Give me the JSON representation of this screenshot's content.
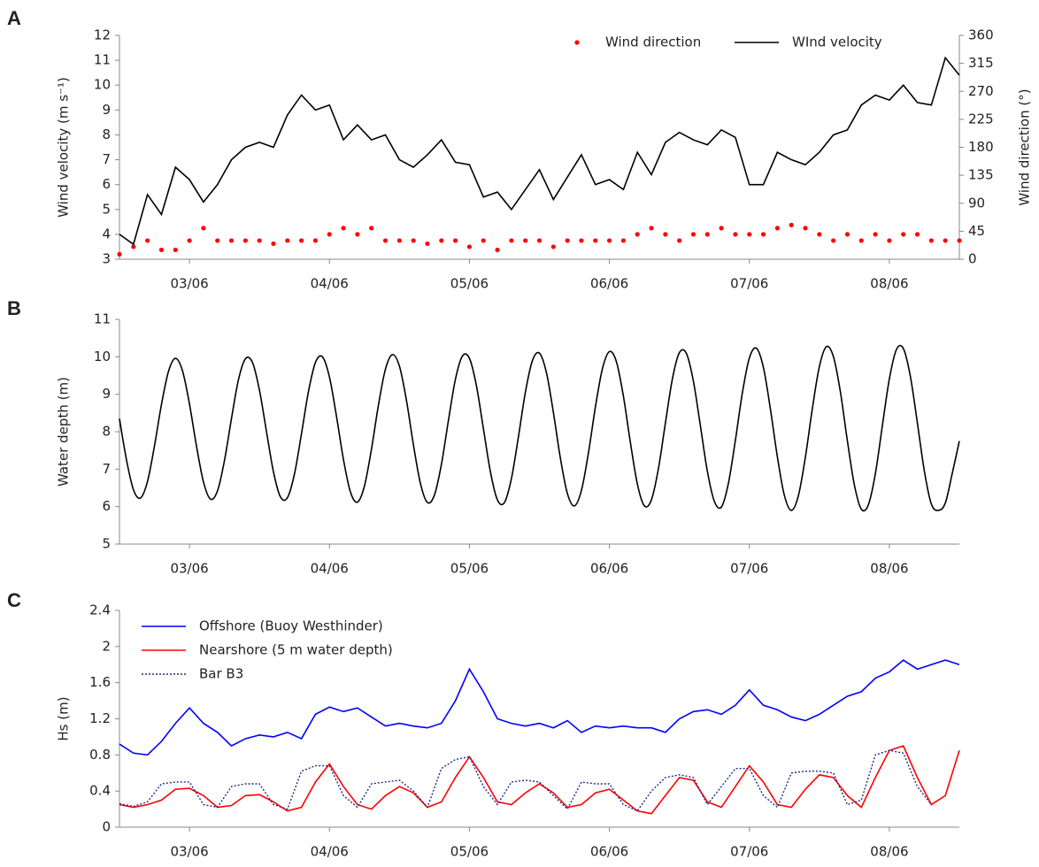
{
  "chart_data": [
    {
      "type": "line",
      "panel": "A",
      "ylabel": "Wind velocity (m s⁻¹)",
      "y2label": "Wind direction (°)",
      "legend": "top-right",
      "xlim": [
        2.5,
        8.5
      ],
      "xticks": [
        {
          "value": 3,
          "label": "03/06"
        },
        {
          "value": 4,
          "label": "04/06"
        },
        {
          "value": 5,
          "label": "05/06"
        },
        {
          "value": 6,
          "label": "06/06"
        },
        {
          "value": 7,
          "label": "07/06"
        },
        {
          "value": 8,
          "label": "08/06"
        }
      ],
      "ylim": [
        3,
        12
      ],
      "yticks": [
        3,
        4,
        5,
        6,
        7,
        8,
        9,
        10,
        11,
        12
      ],
      "y2lim": [
        0,
        360
      ],
      "y2ticks": [
        0,
        45,
        90,
        135,
        180,
        225,
        270,
        315,
        360
      ],
      "x": [
        2.5,
        2.6,
        2.7,
        2.8,
        2.9,
        3.0,
        3.1,
        3.2,
        3.3,
        3.4,
        3.5,
        3.6,
        3.7,
        3.8,
        3.9,
        4.0,
        4.1,
        4.2,
        4.3,
        4.4,
        4.5,
        4.6,
        4.7,
        4.8,
        4.9,
        5.0,
        5.1,
        5.2,
        5.3,
        5.4,
        5.5,
        5.6,
        5.7,
        5.8,
        5.9,
        6.0,
        6.1,
        6.2,
        6.3,
        6.4,
        6.5,
        6.6,
        6.7,
        6.8,
        6.9,
        7.0,
        7.1,
        7.2,
        7.3,
        7.4,
        7.5,
        7.6,
        7.7,
        7.8,
        7.9,
        8.0,
        8.1,
        8.2,
        8.3,
        8.4,
        8.5
      ],
      "series": [
        {
          "name": "Wind direction",
          "color": "#ff0000",
          "mark": "dot",
          "axis": "y2",
          "values": [
            8,
            20,
            30,
            15,
            15,
            30,
            50,
            30,
            30,
            30,
            30,
            25,
            30,
            30,
            30,
            40,
            50,
            40,
            50,
            30,
            30,
            30,
            25,
            30,
            30,
            20,
            30,
            15,
            30,
            30,
            30,
            20,
            30,
            30,
            30,
            30,
            30,
            40,
            50,
            40,
            30,
            40,
            40,
            50,
            40,
            40,
            40,
            50,
            55,
            50,
            40,
            30,
            40,
            30,
            40,
            30,
            40,
            40,
            30,
            30,
            30
          ]
        },
        {
          "name": "WInd velocity",
          "color": "#000000",
          "mark": "line",
          "values": [
            4.0,
            3.6,
            5.6,
            4.8,
            6.7,
            6.2,
            5.3,
            6.0,
            7.0,
            7.5,
            7.7,
            7.5,
            8.8,
            9.6,
            9.0,
            9.2,
            7.8,
            8.4,
            7.8,
            8.0,
            7.0,
            6.7,
            7.2,
            7.8,
            6.9,
            6.8,
            5.5,
            5.7,
            5.0,
            5.8,
            6.6,
            5.4,
            6.3,
            7.2,
            6.0,
            6.2,
            5.8,
            7.3,
            6.4,
            7.7,
            8.1,
            7.8,
            7.6,
            8.2,
            7.9,
            6.0,
            6.0,
            7.3,
            7.0,
            6.8,
            7.3,
            8.0,
            8.2,
            9.2,
            9.6,
            9.4,
            10.0,
            9.3,
            9.2,
            11.1,
            10.4
          ]
        }
      ]
    },
    {
      "type": "line",
      "panel": "B",
      "ylabel": "Water depth (m)",
      "xlim": [
        2.5,
        8.5
      ],
      "xticks": [
        {
          "value": 3,
          "label": "03/06"
        },
        {
          "value": 4,
          "label": "04/06"
        },
        {
          "value": 5,
          "label": "05/06"
        },
        {
          "value": 6,
          "label": "06/06"
        },
        {
          "value": 7,
          "label": "07/06"
        },
        {
          "value": 8,
          "label": "08/06"
        }
      ],
      "ylim": [
        5,
        11
      ],
      "yticks": [
        5,
        6,
        7,
        8,
        9,
        10,
        11
      ],
      "x": [
        2.5,
        2.55,
        2.6,
        2.65,
        2.7,
        2.75,
        2.8,
        2.85,
        2.9,
        2.95,
        3.0,
        3.05,
        3.1,
        3.15,
        3.2,
        3.25,
        3.3,
        3.35,
        3.4,
        3.45,
        3.5,
        3.55,
        3.6,
        3.65,
        3.7,
        3.75,
        3.8,
        3.85,
        3.9,
        3.95,
        4.0,
        4.05,
        4.1,
        4.15,
        4.2,
        4.25,
        4.3,
        4.35,
        4.4,
        4.45,
        4.5,
        4.55,
        4.6,
        4.65,
        4.7,
        4.75,
        4.8,
        4.85,
        4.9,
        4.95,
        5.0,
        5.05,
        5.1,
        5.15,
        5.2,
        5.25,
        5.3,
        5.35,
        5.4,
        5.45,
        5.5,
        5.55,
        5.6,
        5.65,
        5.7,
        5.75,
        5.8,
        5.85,
        5.9,
        5.95,
        6.0,
        6.05,
        6.1,
        6.15,
        6.2,
        6.25,
        6.3,
        6.35,
        6.4,
        6.45,
        6.5,
        6.55,
        6.6,
        6.65,
        6.7,
        6.75,
        6.8,
        6.85,
        6.9,
        6.95,
        7.0,
        7.05,
        7.1,
        7.15,
        7.2,
        7.25,
        7.3,
        7.35,
        7.4,
        7.45,
        7.5,
        7.55,
        7.6,
        7.65,
        7.7,
        7.75,
        7.8,
        7.85,
        7.9,
        7.95,
        8.0,
        8.05,
        8.1,
        8.15,
        8.2,
        8.25,
        8.3,
        8.35,
        8.4,
        8.45,
        8.5
      ],
      "series": [
        {
          "name": "Water depth",
          "color": "#000000",
          "mark": "smooth",
          "values": [
            8.35,
            7.25,
            6.45,
            6.23,
            6.67,
            7.62,
            8.73,
            9.61,
            9.96,
            9.63,
            8.74,
            7.62,
            6.66,
            6.2,
            6.42,
            7.23,
            8.35,
            9.39,
            9.95,
            9.85,
            9.11,
            8.01,
            6.93,
            6.26,
            6.24,
            6.87,
            7.94,
            9.07,
            9.85,
            10.0,
            9.46,
            8.42,
            7.26,
            6.39,
            6.12,
            6.55,
            7.53,
            8.71,
            9.67,
            10.06,
            9.75,
            8.84,
            7.65,
            6.62,
            6.11,
            6.31,
            7.13,
            8.3,
            9.4,
            10.02,
            9.96,
            9.23,
            8.08,
            6.93,
            6.18,
            6.11,
            6.75,
            7.86,
            9.06,
            9.9,
            10.1,
            9.58,
            8.51,
            7.29,
            6.35,
            6.02,
            6.43,
            7.43,
            8.66,
            9.68,
            10.14,
            9.87,
            8.95,
            7.71,
            6.6,
            6.02,
            6.18,
            7.01,
            8.23,
            9.41,
            10.11,
            10.09,
            9.35,
            8.16,
            6.94,
            6.14,
            5.99,
            6.62,
            7.77,
            9.04,
            9.97,
            10.23,
            9.72,
            8.61,
            7.33,
            6.3,
            5.9,
            6.29,
            7.32,
            8.62,
            9.74,
            10.27,
            10.01,
            9.07,
            7.76,
            6.58,
            5.93,
            6.05,
            6.88,
            8.16,
            9.41,
            10.19,
            10.22,
            9.48,
            8.24,
            6.95,
            6.07,
            5.9,
            6.1,
            6.9,
            7.75
          ]
        }
      ]
    },
    {
      "type": "line",
      "panel": "C",
      "ylabel": "Hs (m)",
      "legend": "top-left",
      "xlim": [
        2.5,
        8.5
      ],
      "xticks": [
        {
          "value": 3,
          "label": "03/06"
        },
        {
          "value": 4,
          "label": "04/06"
        },
        {
          "value": 5,
          "label": "05/06"
        },
        {
          "value": 6,
          "label": "06/06"
        },
        {
          "value": 7,
          "label": "07/06"
        },
        {
          "value": 8,
          "label": "08/06"
        }
      ],
      "ylim": [
        0,
        2.4
      ],
      "yticks": [
        0,
        0.4,
        0.8,
        1.2,
        1.6,
        2,
        2.4
      ],
      "x": [
        2.5,
        2.6,
        2.7,
        2.8,
        2.9,
        3.0,
        3.1,
        3.2,
        3.3,
        3.4,
        3.5,
        3.6,
        3.7,
        3.8,
        3.9,
        4.0,
        4.1,
        4.2,
        4.3,
        4.4,
        4.5,
        4.6,
        4.7,
        4.8,
        4.9,
        5.0,
        5.1,
        5.2,
        5.3,
        5.4,
        5.5,
        5.6,
        5.7,
        5.8,
        5.9,
        6.0,
        6.1,
        6.2,
        6.3,
        6.4,
        6.5,
        6.6,
        6.7,
        6.8,
        6.9,
        7.0,
        7.1,
        7.2,
        7.3,
        7.4,
        7.5,
        7.6,
        7.7,
        7.8,
        7.9,
        8.0,
        8.1,
        8.2,
        8.3,
        8.4,
        8.5
      ],
      "series": [
        {
          "name": "Offshore (Buoy Westhinder)",
          "color": "#0000ff",
          "mark": "line",
          "values": [
            0.92,
            0.82,
            0.8,
            0.95,
            1.15,
            1.32,
            1.15,
            1.05,
            0.9,
            0.98,
            1.02,
            1.0,
            1.05,
            0.98,
            1.25,
            1.33,
            1.28,
            1.32,
            1.22,
            1.12,
            1.15,
            1.12,
            1.1,
            1.15,
            1.4,
            1.75,
            1.5,
            1.2,
            1.15,
            1.12,
            1.15,
            1.1,
            1.18,
            1.05,
            1.12,
            1.1,
            1.12,
            1.1,
            1.1,
            1.05,
            1.2,
            1.28,
            1.3,
            1.25,
            1.35,
            1.52,
            1.35,
            1.3,
            1.22,
            1.18,
            1.25,
            1.35,
            1.45,
            1.5,
            1.65,
            1.72,
            1.85,
            1.75,
            1.8,
            1.85,
            1.8
          ]
        },
        {
          "name": "Nearshore (5 m water depth)",
          "color": "#ff0000",
          "mark": "line",
          "values": [
            0.25,
            0.22,
            0.25,
            0.3,
            0.42,
            0.43,
            0.35,
            0.22,
            0.24,
            0.35,
            0.36,
            0.28,
            0.18,
            0.22,
            0.5,
            0.7,
            0.45,
            0.25,
            0.2,
            0.35,
            0.45,
            0.38,
            0.22,
            0.28,
            0.55,
            0.78,
            0.55,
            0.28,
            0.25,
            0.38,
            0.48,
            0.38,
            0.22,
            0.25,
            0.38,
            0.42,
            0.3,
            0.18,
            0.15,
            0.35,
            0.55,
            0.52,
            0.28,
            0.22,
            0.45,
            0.68,
            0.5,
            0.25,
            0.22,
            0.42,
            0.58,
            0.55,
            0.35,
            0.22,
            0.55,
            0.85,
            0.9,
            0.55,
            0.25,
            0.35,
            0.85
          ]
        },
        {
          "name": "Bar B3",
          "color": "#1f2a8c",
          "mark": "line",
          "dash": "dotted",
          "values": [
            0.26,
            0.23,
            0.28,
            0.48,
            0.5,
            0.5,
            0.25,
            0.22,
            0.45,
            0.48,
            0.48,
            0.25,
            0.2,
            0.62,
            0.68,
            0.68,
            0.35,
            0.22,
            0.48,
            0.5,
            0.52,
            0.4,
            0.22,
            0.65,
            0.75,
            0.78,
            0.45,
            0.25,
            0.5,
            0.52,
            0.5,
            0.35,
            0.2,
            0.5,
            0.48,
            0.48,
            0.25,
            0.18,
            0.4,
            0.55,
            0.58,
            0.55,
            0.25,
            0.45,
            0.65,
            0.65,
            0.35,
            0.22,
            0.6,
            0.62,
            0.62,
            0.6,
            0.25,
            0.3,
            0.8,
            0.85,
            0.82,
            0.45,
            0.25,
            null,
            null
          ]
        }
      ]
    }
  ]
}
